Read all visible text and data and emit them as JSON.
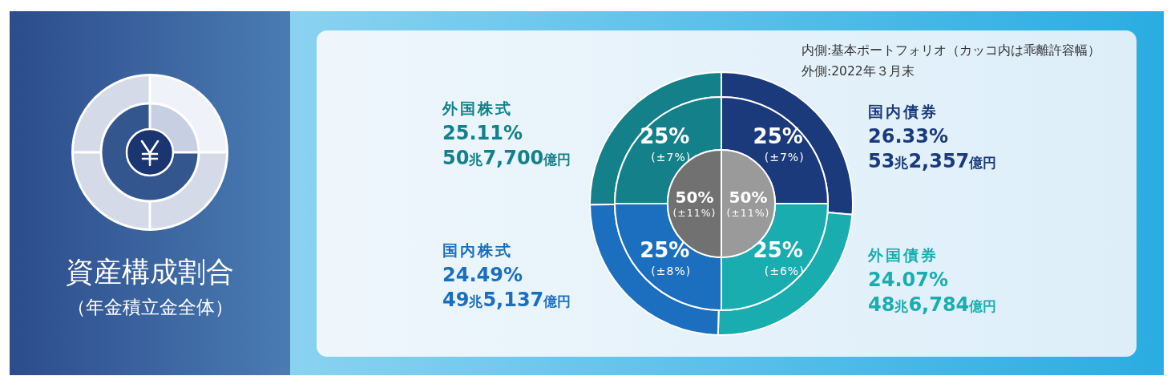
{
  "chart_data": [
    {
      "type": "donut",
      "title": "資産構成割合",
      "subtitle": "（年金積立金全体）",
      "categories": [
        "国内債券",
        "外国債券",
        "国内株式",
        "外国株式"
      ],
      "values": [
        26.33,
        24.07,
        24.49,
        25.11
      ],
      "colors": [
        "#1b3a7c",
        "#19adb0",
        "#1b6fbe",
        "#14808a"
      ],
      "value_labels": [
        "26.33%\n53兆2,357億円",
        "24.07%\n48兆6,784億円",
        "24.49%\n49兆5,137億円",
        "25.11%\n50兆7,700億円"
      ],
      "annotations": [
        "内側:基本ポートフォリオ（カッコ内は乖離許容幅）",
        "外側:2022年３月末"
      ]
    },
    {
      "type": "donut",
      "categories": [
        null,
        null,
        null,
        null
      ],
      "values": [
        25,
        25,
        25,
        25
      ],
      "colors": [
        "#1b3a7c",
        "#19adb0",
        "#1b6fbe",
        "#14808a"
      ],
      "value_labels": [
        "25%\n(±7%)",
        "25%\n(±6%)",
        "25%\n(±8%)",
        "25%\n(±7%)"
      ]
    },
    {
      "type": "pie",
      "categories": [
        null,
        null
      ],
      "values": [
        50,
        50
      ],
      "colors": [
        "#9a9a9a",
        "#717171"
      ],
      "value_labels": [
        "50%\n(±11%)",
        "50%\n(±11%)"
      ]
    }
  ]
}
